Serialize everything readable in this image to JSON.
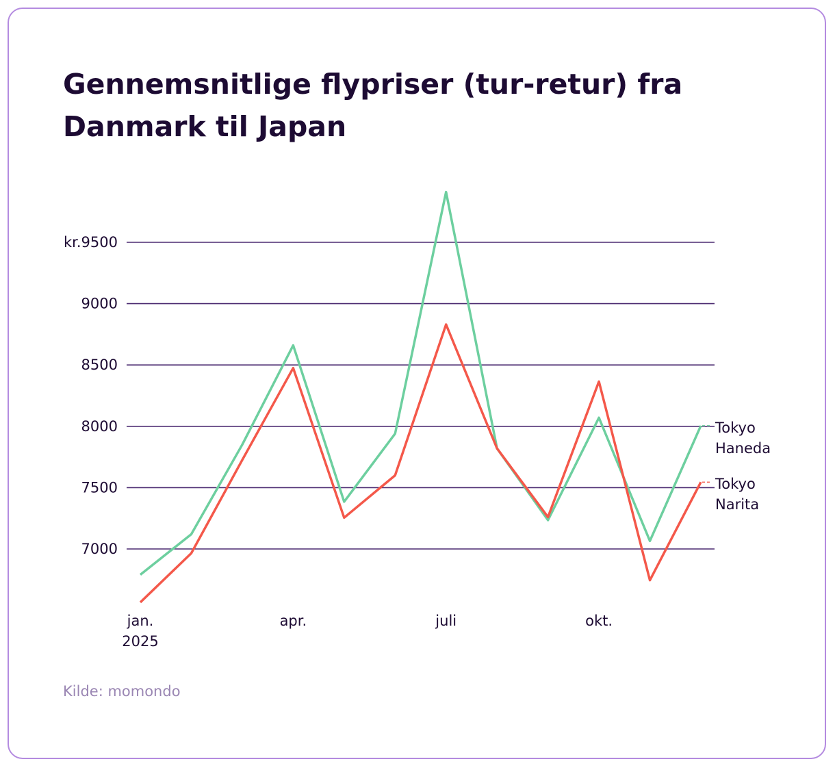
{
  "chart_data": {
    "type": "line",
    "title": "Gennemsnitlige flypriser (tur-retur) fra Danmark til Japan",
    "source": "Kilde: momondo",
    "categories": [
      "jan. 2025",
      null,
      null,
      "apr.",
      null,
      null,
      "juli",
      null,
      null,
      "okt.",
      null,
      null
    ],
    "series": [
      {
        "name": "Tokyo Haneda",
        "color": "#6dcf9f",
        "values": [
          6790,
          7120,
          7850,
          8660,
          7385,
          7940,
          9910,
          7820,
          7235,
          8070,
          7065,
          8005
        ]
      },
      {
        "name": "Tokyo Narita",
        "color": "#f4584a",
        "values": [
          6565,
          6965,
          7725,
          8475,
          7255,
          7600,
          8830,
          7820,
          7260,
          8365,
          6745,
          7545
        ]
      }
    ],
    "ylim": [
      6500,
      10000
    ],
    "yticks": [
      7000,
      7500,
      8000,
      8500,
      9000,
      {
        "value": 9500,
        "label": "kr.9500"
      }
    ],
    "grid": true
  }
}
